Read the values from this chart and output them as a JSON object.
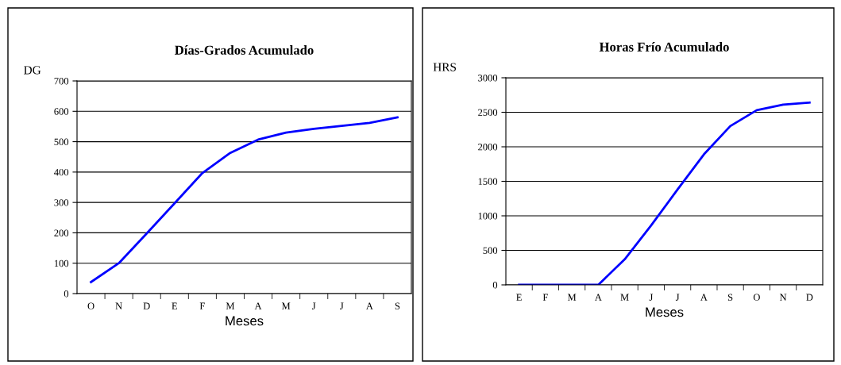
{
  "chart_data": [
    {
      "type": "line",
      "title": "Días-Grados Acumulado",
      "ylabel": "DG",
      "xlabel": "Meses",
      "categories": [
        "O",
        "N",
        "D",
        "E",
        "F",
        "M",
        "A",
        "M",
        "J",
        "J",
        "A",
        "S"
      ],
      "series": [
        {
          "color": "#0000ff",
          "values": [
            38,
            100,
            198,
            297,
            397,
            463,
            507,
            530,
            542,
            552,
            562,
            580
          ]
        }
      ],
      "ylim": [
        0,
        700
      ],
      "yticks": [
        0,
        100,
        200,
        300,
        400,
        500,
        600,
        700
      ],
      "grid": "y",
      "legend": false
    },
    {
      "type": "line",
      "title": "Horas Frío Acumulado",
      "ylabel": "HRS",
      "xlabel": "Meses",
      "categories": [
        "E",
        "F",
        "M",
        "A",
        "M",
        "J",
        "J",
        "A",
        "S",
        "O",
        "N",
        "D"
      ],
      "series": [
        {
          "color": "#0000ff",
          "values": [
            0,
            0,
            0,
            0,
            370,
            860,
            1380,
            1890,
            2300,
            2530,
            2610,
            2640
          ]
        }
      ],
      "ylim": [
        0,
        3000
      ],
      "yticks": [
        0,
        500,
        1000,
        1500,
        2000,
        2500,
        3000
      ],
      "grid": "y",
      "legend": false
    }
  ]
}
